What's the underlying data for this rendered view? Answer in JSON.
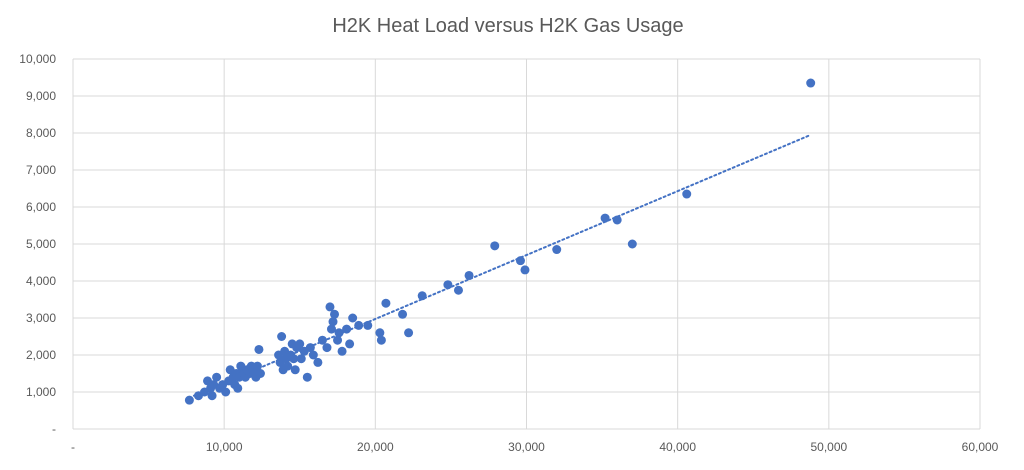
{
  "chart_data": {
    "type": "scatter",
    "title": "H2K Heat Load versus H2K Gas Usage",
    "xlabel": "",
    "ylabel": "",
    "xlim": [
      0,
      60000
    ],
    "ylim": [
      0,
      10000
    ],
    "x_ticks": [
      "-",
      "10,000",
      "20,000",
      "30,000",
      "40,000",
      "50,000",
      "60,000"
    ],
    "y_ticks": [
      "-",
      "1,000",
      "2,000",
      "3,000",
      "4,000",
      "5,000",
      "6,000",
      "7,000",
      "8,000",
      "9,000",
      "10,000"
    ],
    "grid": true,
    "legend": "none",
    "marker_color": "#4472c4",
    "trendline": {
      "type": "linear",
      "style": "dotted",
      "color": "#4472c4",
      "from": [
        8000,
        900
      ],
      "to": [
        48800,
        7950
      ]
    },
    "series": [
      {
        "points": [
          [
            7700,
            780
          ],
          [
            8300,
            900
          ],
          [
            8700,
            1000
          ],
          [
            8900,
            1300
          ],
          [
            9100,
            1100
          ],
          [
            9200,
            900
          ],
          [
            9300,
            1200
          ],
          [
            9500,
            1400
          ],
          [
            9700,
            1100
          ],
          [
            9900,
            1200
          ],
          [
            10100,
            1000
          ],
          [
            10300,
            1300
          ],
          [
            10400,
            1600
          ],
          [
            10600,
            1400
          ],
          [
            10700,
            1200
          ],
          [
            10800,
            1500
          ],
          [
            10900,
            1100
          ],
          [
            11000,
            1400
          ],
          [
            11100,
            1700
          ],
          [
            11200,
            1600
          ],
          [
            11300,
            1500
          ],
          [
            11400,
            1400
          ],
          [
            11500,
            1600
          ],
          [
            11700,
            1500
          ],
          [
            11800,
            1700
          ],
          [
            11900,
            1600
          ],
          [
            12000,
            1500
          ],
          [
            12100,
            1400
          ],
          [
            12200,
            1700
          ],
          [
            12300,
            2150
          ],
          [
            12400,
            1500
          ],
          [
            13600,
            2000
          ],
          [
            13700,
            1800
          ],
          [
            13800,
            2500
          ],
          [
            13900,
            1600
          ],
          [
            14000,
            2100
          ],
          [
            14100,
            1900
          ],
          [
            14200,
            1700
          ],
          [
            14400,
            2000
          ],
          [
            14500,
            2300
          ],
          [
            14600,
            1900
          ],
          [
            14700,
            1600
          ],
          [
            14800,
            2200
          ],
          [
            15000,
            2300
          ],
          [
            15100,
            1900
          ],
          [
            15300,
            2100
          ],
          [
            15500,
            1400
          ],
          [
            15700,
            2200
          ],
          [
            15900,
            2000
          ],
          [
            16200,
            1800
          ],
          [
            16500,
            2400
          ],
          [
            16800,
            2200
          ],
          [
            17000,
            3300
          ],
          [
            17100,
            2700
          ],
          [
            17200,
            2900
          ],
          [
            17300,
            3100
          ],
          [
            17500,
            2400
          ],
          [
            17600,
            2600
          ],
          [
            17800,
            2100
          ],
          [
            18100,
            2700
          ],
          [
            18300,
            2300
          ],
          [
            18500,
            3000
          ],
          [
            18900,
            2800
          ],
          [
            19500,
            2800
          ],
          [
            20300,
            2600
          ],
          [
            20400,
            2400
          ],
          [
            20700,
            3400
          ],
          [
            21800,
            3100
          ],
          [
            22200,
            2600
          ],
          [
            23100,
            3600
          ],
          [
            24800,
            3900
          ],
          [
            25500,
            3750
          ],
          [
            26200,
            4150
          ],
          [
            27900,
            4950
          ],
          [
            29600,
            4550
          ],
          [
            29900,
            4300
          ],
          [
            32000,
            4850
          ],
          [
            35200,
            5700
          ],
          [
            36000,
            5650
          ],
          [
            37000,
            5000
          ],
          [
            40600,
            6350
          ],
          [
            48800,
            9350
          ]
        ]
      }
    ]
  }
}
